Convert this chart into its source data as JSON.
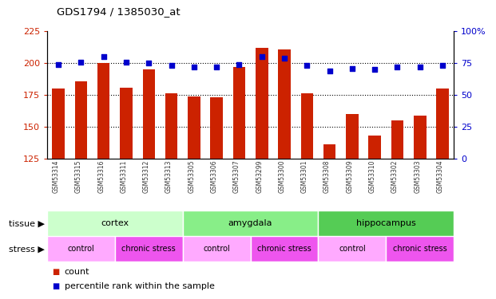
{
  "title": "GDS1794 / 1385030_at",
  "samples": [
    "GSM53314",
    "GSM53315",
    "GSM53316",
    "GSM53311",
    "GSM53312",
    "GSM53313",
    "GSM53305",
    "GSM53306",
    "GSM53307",
    "GSM53299",
    "GSM53300",
    "GSM53301",
    "GSM53308",
    "GSM53309",
    "GSM53310",
    "GSM53302",
    "GSM53303",
    "GSM53304"
  ],
  "counts": [
    180,
    186,
    200,
    181,
    195,
    176,
    174,
    173,
    197,
    212,
    211,
    176,
    136,
    160,
    143,
    155,
    159,
    180
  ],
  "percentiles": [
    74,
    76,
    80,
    76,
    75,
    73,
    72,
    72,
    74,
    80,
    79,
    73,
    69,
    71,
    70,
    72,
    72,
    73
  ],
  "ylim_left": [
    125,
    225
  ],
  "ylim_right": [
    0,
    100
  ],
  "yticks_left": [
    125,
    150,
    175,
    200,
    225
  ],
  "yticks_right": [
    0,
    25,
    50,
    75,
    100
  ],
  "bar_color": "#cc2200",
  "dot_color": "#0000cc",
  "tissue_groups": [
    {
      "label": "cortex",
      "start": 0,
      "end": 6,
      "color": "#ccffcc"
    },
    {
      "label": "amygdala",
      "start": 6,
      "end": 12,
      "color": "#88ee88"
    },
    {
      "label": "hippocampus",
      "start": 12,
      "end": 18,
      "color": "#55cc55"
    }
  ],
  "stress_groups": [
    {
      "label": "control",
      "start": 0,
      "end": 3,
      "color": "#ffaaff"
    },
    {
      "label": "chronic stress",
      "start": 3,
      "end": 6,
      "color": "#ee55ee"
    },
    {
      "label": "control",
      "start": 6,
      "end": 9,
      "color": "#ffaaff"
    },
    {
      "label": "chronic stress",
      "start": 9,
      "end": 12,
      "color": "#ee55ee"
    },
    {
      "label": "control",
      "start": 12,
      "end": 15,
      "color": "#ffaaff"
    },
    {
      "label": "chronic stress",
      "start": 15,
      "end": 18,
      "color": "#ee55ee"
    }
  ],
  "legend_count": "count",
  "legend_percentile": "percentile rank within the sample",
  "xticklabel_bg": "#cccccc"
}
